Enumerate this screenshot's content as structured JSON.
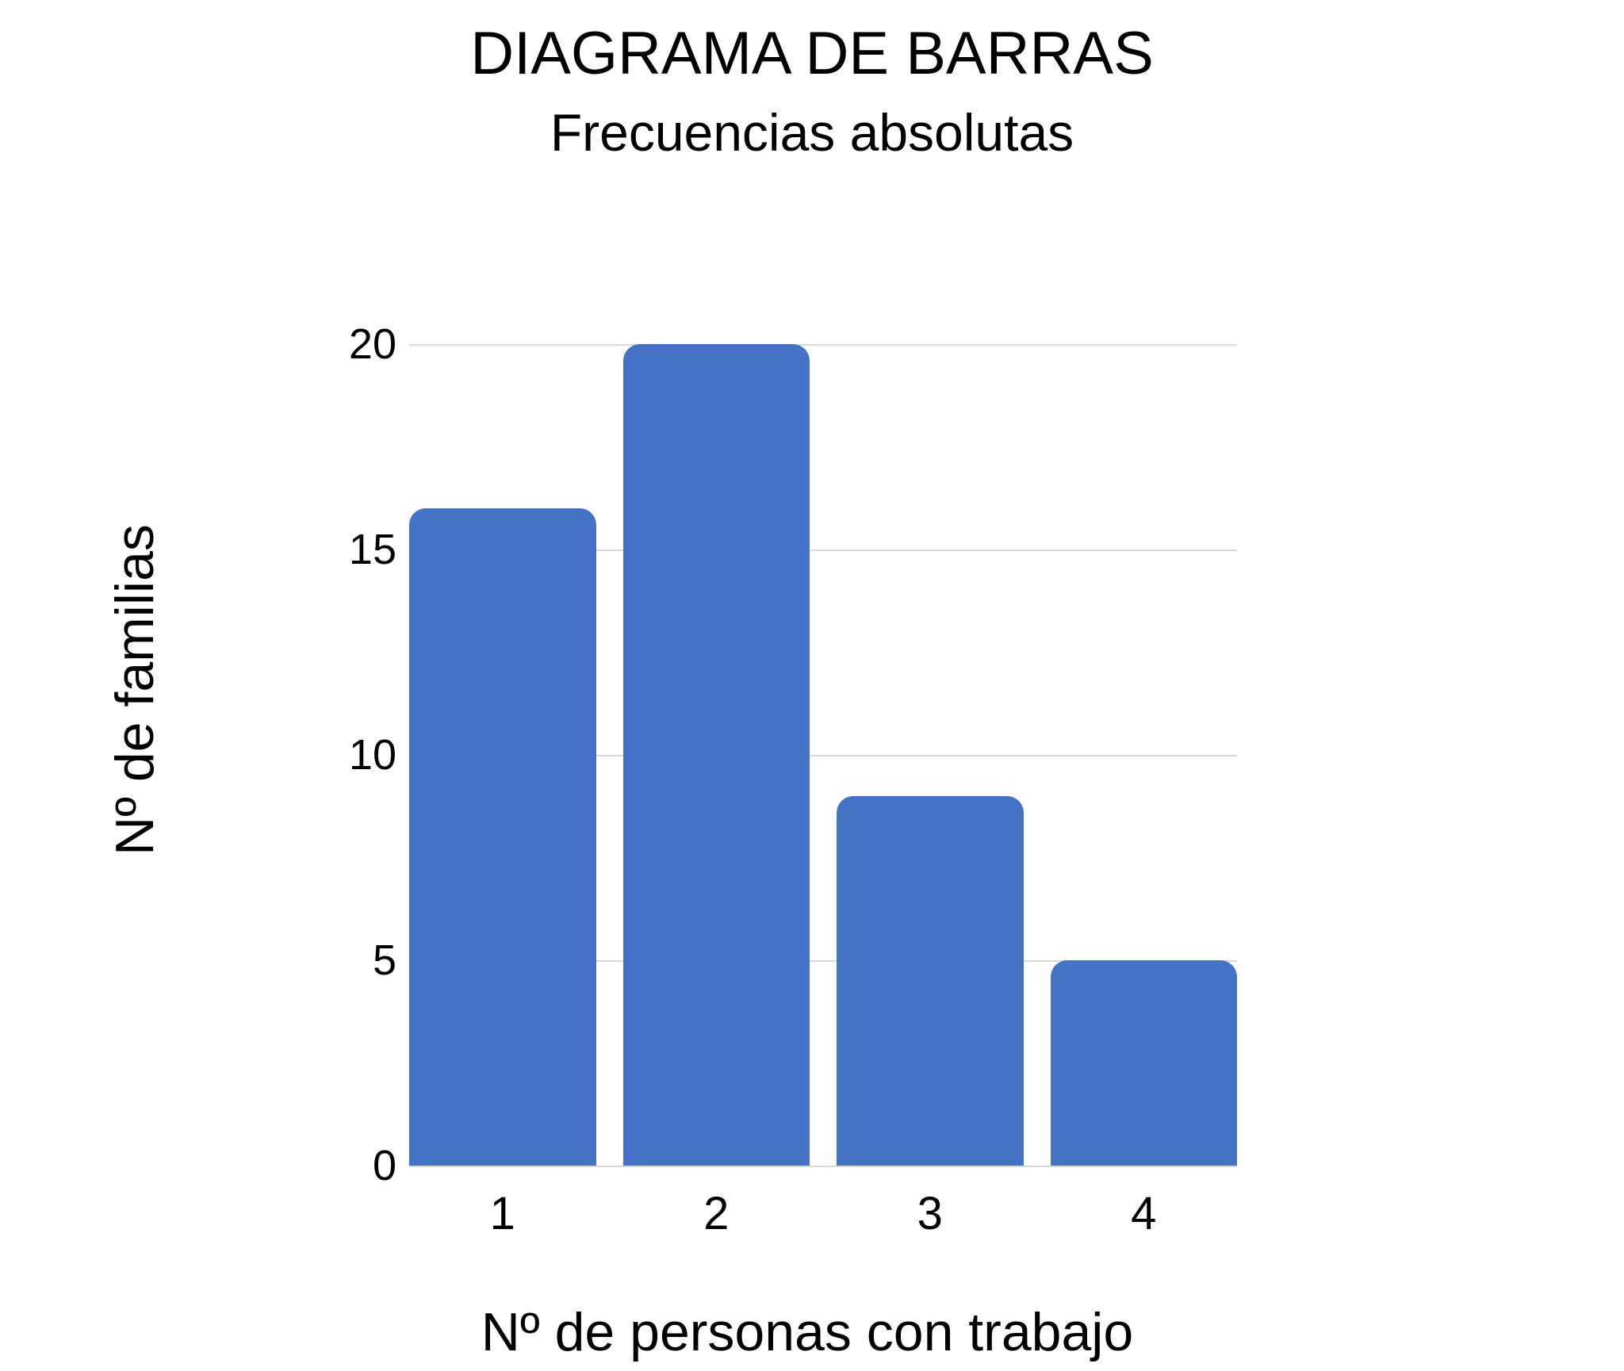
{
  "chart_data": {
    "type": "bar",
    "title": "DIAGRAMA DE BARRAS",
    "subtitle": "Frecuencias absolutas",
    "categories": [
      "1",
      "2",
      "3",
      "4"
    ],
    "values": [
      16,
      20,
      9,
      5
    ],
    "xlabel": "Nº de personas con trabajo",
    "ylabel": "Nº de familias",
    "ylim": [
      0,
      20
    ],
    "yticks": [
      0,
      5,
      10,
      15,
      20
    ],
    "grid": true,
    "legend": false,
    "colors": {
      "bar": "#4472C4",
      "gridline": "#d9d9d9",
      "text": "#000000",
      "background": "#ffffff"
    }
  }
}
